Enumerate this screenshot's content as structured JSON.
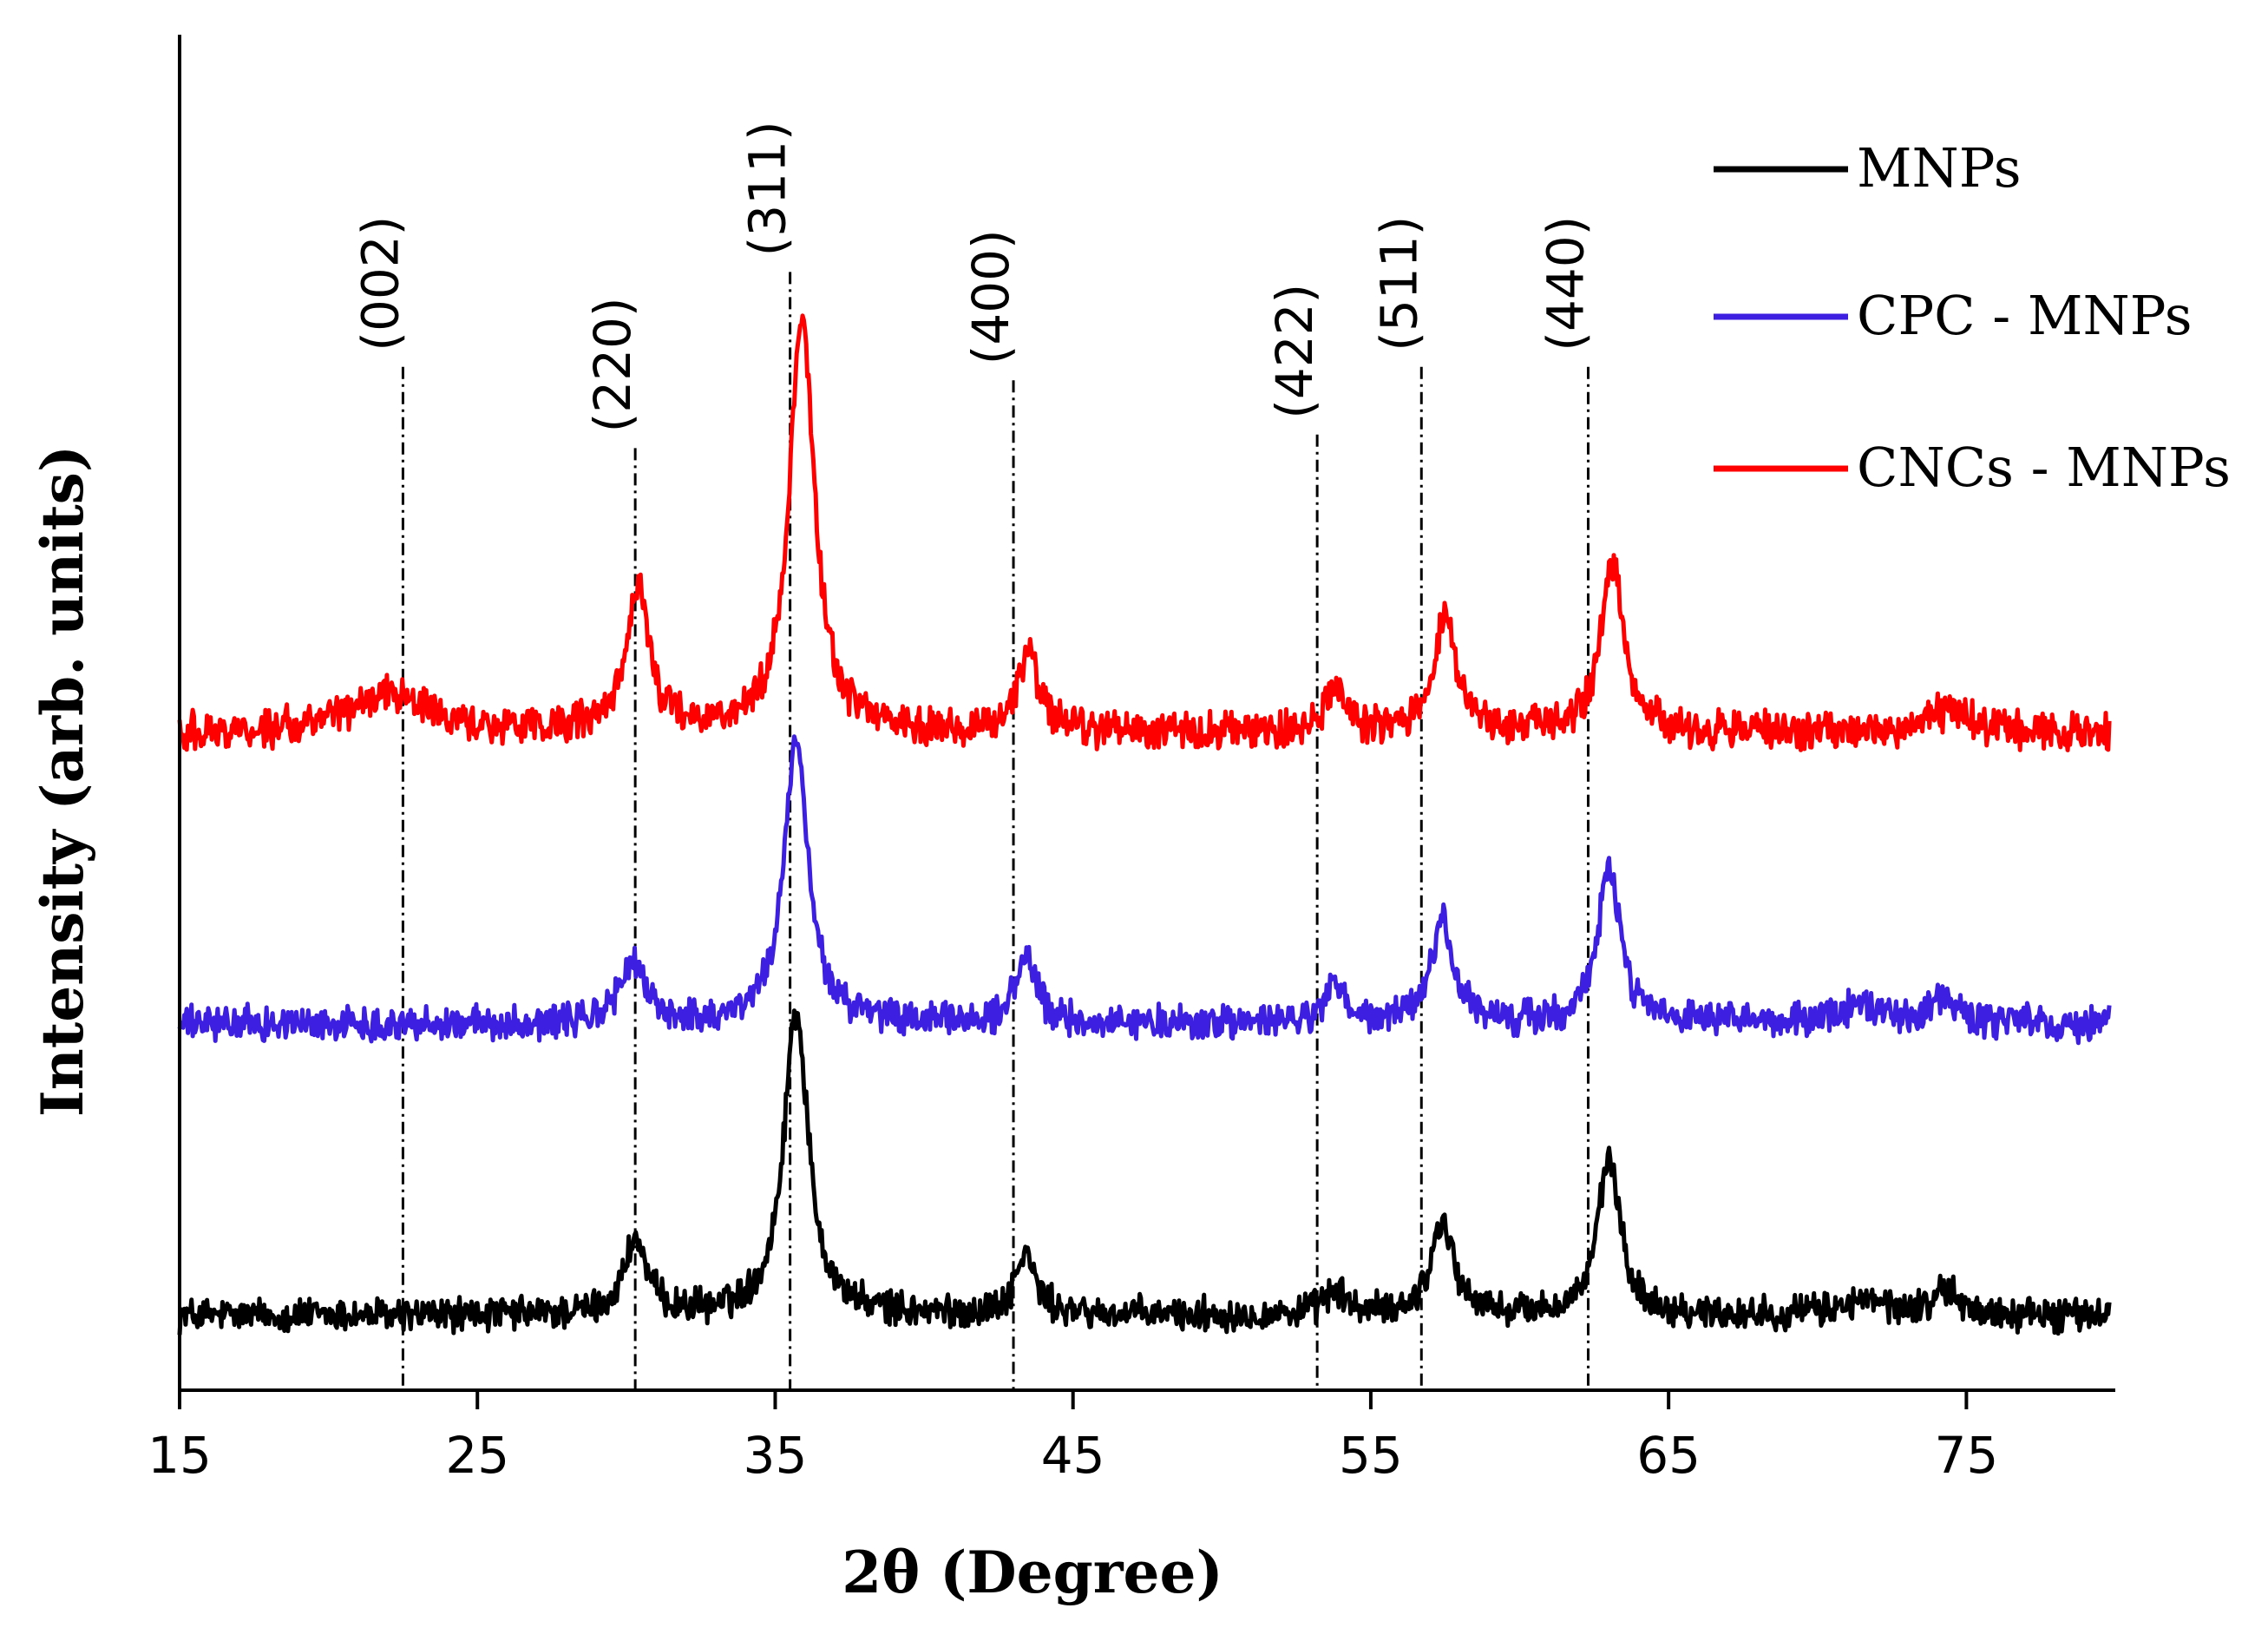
{
  "chart_data": {
    "type": "line",
    "title": "",
    "xlabel": "2θ (Degree)",
    "ylabel": "Intensity (arb. units)",
    "xlim": [
      15,
      80
    ],
    "x_ticks": [
      15,
      25,
      35,
      45,
      55,
      65,
      75
    ],
    "x_tick_labels": [
      "15",
      "25",
      "35",
      "45",
      "55",
      "65",
      "75"
    ],
    "ylim": [
      0,
      10
    ],
    "y_ticks_shown": false,
    "grid": false,
    "legend_position": "top-right",
    "series": [
      {
        "name": "MNPs",
        "color": "#000000",
        "baseline": 0.55,
        "noise": 0.2,
        "peaks": [
          {
            "x": 30.3,
            "height": 0.55,
            "width": 0.45
          },
          {
            "x": 35.7,
            "height": 2.25,
            "width": 0.5
          },
          {
            "x": 43.4,
            "height": 0.45,
            "width": 0.4
          },
          {
            "x": 53.8,
            "height": 0.18,
            "width": 0.4
          },
          {
            "x": 57.4,
            "height": 0.7,
            "width": 0.45
          },
          {
            "x": 63.0,
            "height": 1.15,
            "width": 0.45
          },
          {
            "x": 71.5,
            "height": 0.1,
            "width": 1.0
          },
          {
            "x": 74.3,
            "height": 0.18,
            "width": 0.5
          }
        ]
      },
      {
        "name": "CPC - MNPs",
        "color": "#3c1fe0",
        "baseline": 2.7,
        "noise": 0.2,
        "peaks": [
          {
            "x": 30.2,
            "height": 0.45,
            "width": 0.5
          },
          {
            "x": 35.7,
            "height": 2.05,
            "width": 0.5
          },
          {
            "x": 43.4,
            "height": 0.5,
            "width": 0.4
          },
          {
            "x": 53.8,
            "height": 0.3,
            "width": 0.35
          },
          {
            "x": 57.4,
            "height": 0.75,
            "width": 0.45
          },
          {
            "x": 63.0,
            "height": 1.15,
            "width": 0.45
          },
          {
            "x": 71.5,
            "height": 0.12,
            "width": 1.0
          },
          {
            "x": 74.2,
            "height": 0.2,
            "width": 0.5
          }
        ]
      },
      {
        "name": "CNCs - MNPs",
        "color": "#ff0000",
        "baseline": 4.85,
        "noise": 0.22,
        "peaks": [
          {
            "x": 22.0,
            "height": 0.3,
            "width": 1.5
          },
          {
            "x": 30.4,
            "height": 1.05,
            "width": 0.45
          },
          {
            "x": 35.9,
            "height": 3.1,
            "width": 0.5
          },
          {
            "x": 43.5,
            "height": 0.6,
            "width": 0.4
          },
          {
            "x": 53.8,
            "height": 0.3,
            "width": 0.4
          },
          {
            "x": 57.5,
            "height": 0.9,
            "width": 0.45
          },
          {
            "x": 63.1,
            "height": 1.25,
            "width": 0.45
          },
          {
            "x": 74.5,
            "height": 0.2,
            "width": 0.6
          }
        ]
      }
    ],
    "reference_lines": [
      {
        "label": "(002)",
        "x": 22.5,
        "top": 7.55
      },
      {
        "label": "(220)",
        "x": 30.3,
        "top": 6.95
      },
      {
        "label": "(311)",
        "x": 35.5,
        "top": 8.25
      },
      {
        "label": "(400)",
        "x": 43.0,
        "top": 7.45
      },
      {
        "label": "(422)",
        "x": 53.2,
        "top": 7.05
      },
      {
        "label": "(511)",
        "x": 56.7,
        "top": 7.55
      },
      {
        "label": "(440)",
        "x": 62.3,
        "top": 7.55
      }
    ]
  }
}
